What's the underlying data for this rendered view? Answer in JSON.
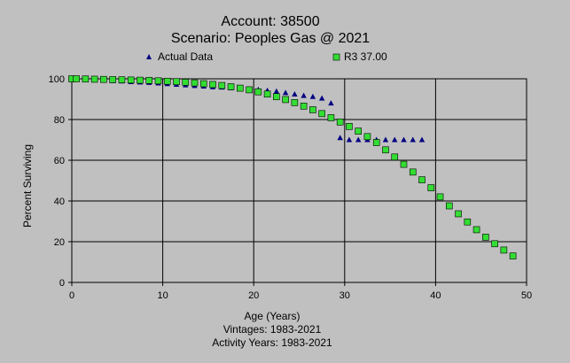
{
  "chart_data": {
    "type": "scatter",
    "title": "Account: 38500",
    "subtitle": "Scenario: Peoples Gas @ 2021",
    "xlabel": "Age (Years)",
    "ylabel": "Percent Surviving",
    "xlim": [
      0,
      50
    ],
    "ylim": [
      0,
      100
    ],
    "xticks": [
      "0",
      "10",
      "20",
      "30",
      "40",
      "50"
    ],
    "yticks": [
      "0",
      "20",
      "40",
      "60",
      "80",
      "100"
    ],
    "grid": true,
    "legend_position": "top",
    "footnotes": [
      "Vintages: 1983-2021",
      "Activity Years: 1983-2021"
    ],
    "series": [
      {
        "name": "Actual Data",
        "marker": "triangle",
        "color": "#000080",
        "x": [
          0,
          0.5,
          1.5,
          2.5,
          3.5,
          4.5,
          5.5,
          6.5,
          7.5,
          8.5,
          9.5,
          10.5,
          11.5,
          12.5,
          13.5,
          14.5,
          15.5,
          16.5,
          17.5,
          18.5,
          19.5,
          20.5,
          21.5,
          22.5,
          23.5,
          24.5,
          25.5,
          26.5,
          27.5,
          28.5,
          29.5,
          30.5,
          31.5,
          32.5,
          33.5,
          34.5,
          35.5,
          36.5,
          37.5,
          38.5
        ],
        "y": [
          100,
          100,
          99.6,
          99.4,
          99.2,
          99,
          98.8,
          98.5,
          98.3,
          98.1,
          97.8,
          97.5,
          97.2,
          96.9,
          96.6,
          96.3,
          96,
          95.8,
          95.5,
          95.2,
          94.9,
          94.6,
          94.2,
          93.8,
          93.1,
          92.4,
          91.7,
          91.2,
          90.4,
          88,
          71,
          70,
          70,
          70,
          70,
          70,
          70,
          70,
          70,
          70
        ]
      },
      {
        "name": "R3 37.00",
        "marker": "square",
        "color": "#33dd33",
        "x": [
          0,
          0.5,
          1.5,
          2.5,
          3.5,
          4.5,
          5.5,
          6.5,
          7.5,
          8.5,
          9.5,
          10.5,
          11.5,
          12.5,
          13.5,
          14.5,
          15.5,
          16.5,
          17.5,
          18.5,
          19.5,
          20.5,
          21.5,
          22.5,
          23.5,
          24.5,
          25.5,
          26.5,
          27.5,
          28.5,
          29.5,
          30.5,
          31.5,
          32.5,
          33.5,
          34.5,
          35.5,
          36.5,
          37.5,
          38.5,
          39.5,
          40.5,
          41.5,
          42.5,
          43.5,
          44.5,
          45.5,
          46.5,
          47.5,
          48.5
        ],
        "y": [
          100,
          100,
          99.9,
          99.8,
          99.7,
          99.6,
          99.5,
          99.4,
          99.3,
          99.2,
          99,
          98.8,
          98.6,
          98.3,
          98,
          97.6,
          97.2,
          96.7,
          96.1,
          95.4,
          94.6,
          93.6,
          92.5,
          91.2,
          89.8,
          88.3,
          86.6,
          84.8,
          82.9,
          80.9,
          78.8,
          76.6,
          74.3,
          71.6,
          68.7,
          65.1,
          61.6,
          58,
          54.2,
          50.4,
          46.5,
          42,
          37.6,
          33.7,
          29.7,
          25.9,
          22.2,
          19,
          15.9,
          13
        ]
      }
    ]
  }
}
